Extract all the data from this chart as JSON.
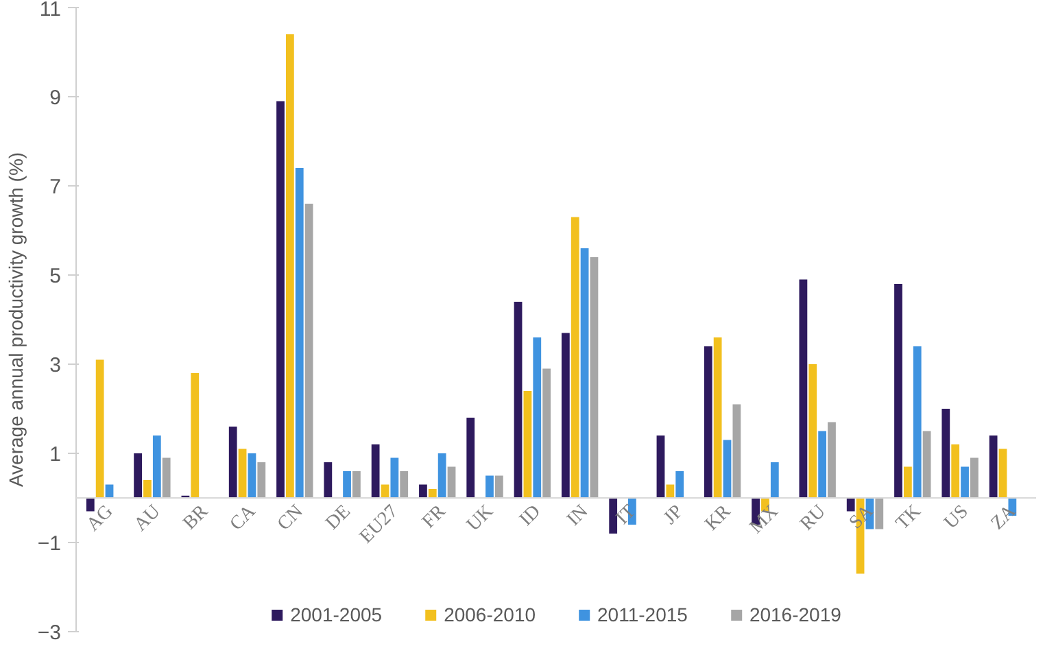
{
  "chart_data": {
    "type": "bar",
    "ylabel": "Average annual productivity growth (%)",
    "categories": [
      "AG",
      "AU",
      "BR",
      "CA",
      "CN",
      "DE",
      "EU27",
      "FR",
      "UK",
      "ID",
      "IN",
      "IT",
      "JP",
      "KR",
      "MX",
      "RU",
      "SA",
      "TK",
      "US",
      "ZA"
    ],
    "series": [
      {
        "name": "2001-2005",
        "color": "#2e1a5e",
        "values": [
          -0.3,
          1.0,
          0.05,
          1.6,
          8.9,
          0.8,
          1.2,
          0.3,
          1.8,
          4.4,
          3.7,
          -0.8,
          1.4,
          3.4,
          -0.6,
          4.9,
          -0.3,
          4.8,
          2.0,
          1.4
        ]
      },
      {
        "name": "2006-2010",
        "color": "#f2c01e",
        "values": [
          3.1,
          0.4,
          2.8,
          1.1,
          10.4,
          0.0,
          0.3,
          0.2,
          null,
          2.4,
          6.3,
          null,
          0.3,
          3.6,
          -0.3,
          3.0,
          -1.7,
          0.7,
          1.2,
          1.1
        ]
      },
      {
        "name": "2011-2015",
        "color": "#3f93e0",
        "values": [
          0.3,
          1.4,
          null,
          1.0,
          7.4,
          0.6,
          0.9,
          1.0,
          0.5,
          3.6,
          5.6,
          -0.6,
          0.6,
          1.3,
          0.8,
          1.5,
          -0.7,
          3.4,
          0.7,
          -0.4
        ]
      },
      {
        "name": "2016-2019",
        "color": "#a6a6a6",
        "values": [
          null,
          0.9,
          null,
          0.8,
          6.6,
          0.6,
          0.6,
          0.7,
          0.5,
          2.9,
          5.4,
          null,
          null,
          2.1,
          0.0,
          1.7,
          -0.7,
          1.5,
          0.9,
          null
        ]
      }
    ],
    "ylim": [
      -3,
      11
    ],
    "yticks": [
      -3,
      -1,
      1,
      3,
      5,
      7,
      9,
      11
    ],
    "grid": false,
    "legend": "bottom"
  }
}
